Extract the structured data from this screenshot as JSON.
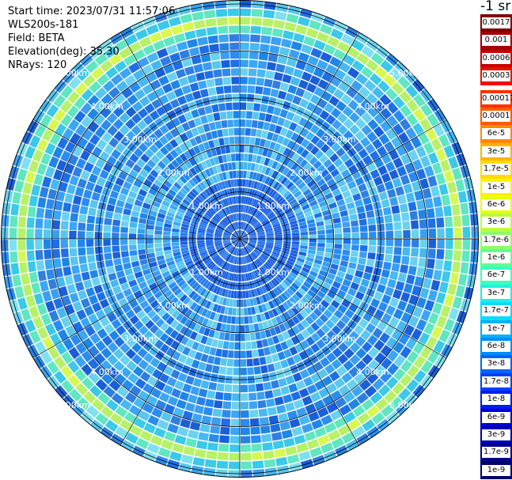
{
  "header": {
    "start_time": "Start time: 2023/07/31 11:57:06",
    "instrument": "WLS200s-181",
    "field": "Field: BETA",
    "elevation": "Elevation(deg): 35.30",
    "nrays": "NRays: 120"
  },
  "colorbar": {
    "unit_label": "-1 sr",
    "upper_segment": [
      {
        "label": "0.0017",
        "color": "#7f0000"
      },
      {
        "label": "0.001",
        "color": "#a00000"
      },
      {
        "label": "0.0006",
        "color": "#c80000"
      },
      {
        "label": "0.0003",
        "color": "#ee1000"
      }
    ],
    "lower_segment": [
      {
        "label": "0.00017",
        "color": "#ff3000"
      },
      {
        "label": "0.0001",
        "color": "#ff5a00"
      },
      {
        "label": "6e-5",
        "color": "#ff8a00"
      },
      {
        "label": "3e-5",
        "color": "#ffb400"
      },
      {
        "label": "1.7e-5",
        "color": "#ffdc00"
      },
      {
        "label": "1e-5",
        "color": "#fff200"
      },
      {
        "label": "6e-6",
        "color": "#e6ff10"
      },
      {
        "label": "3e-6",
        "color": "#b8ff40"
      },
      {
        "label": "1.7e-6",
        "color": "#8cff6a"
      },
      {
        "label": "1e-6",
        "color": "#60ff96"
      },
      {
        "label": "6e-7",
        "color": "#3cffbe"
      },
      {
        "label": "3e-7",
        "color": "#20f0e0"
      },
      {
        "label": "1.7e-7",
        "color": "#10d8ff"
      },
      {
        "label": "1e-7",
        "color": "#00b0ff"
      },
      {
        "label": "6e-8",
        "color": "#008cff"
      },
      {
        "label": "3e-8",
        "color": "#0064ff"
      },
      {
        "label": "1.7e-8",
        "color": "#0040ff"
      },
      {
        "label": "1e-8",
        "color": "#001cf0"
      },
      {
        "label": "6e-9",
        "color": "#0000d8"
      },
      {
        "label": "3e-9",
        "color": "#0000b4"
      },
      {
        "label": "1.7e-9",
        "color": "#00008c"
      },
      {
        "label": "1e-9",
        "color": "#000070"
      }
    ]
  },
  "range_rings": {
    "labels": [
      "1.00km",
      "2.00km",
      "3.00km",
      "4.00km",
      "5.00km"
    ]
  },
  "ppi": {
    "ring_feature_range_km": 4.6,
    "max_range_km": 5.75,
    "spoke_count": 12
  }
}
